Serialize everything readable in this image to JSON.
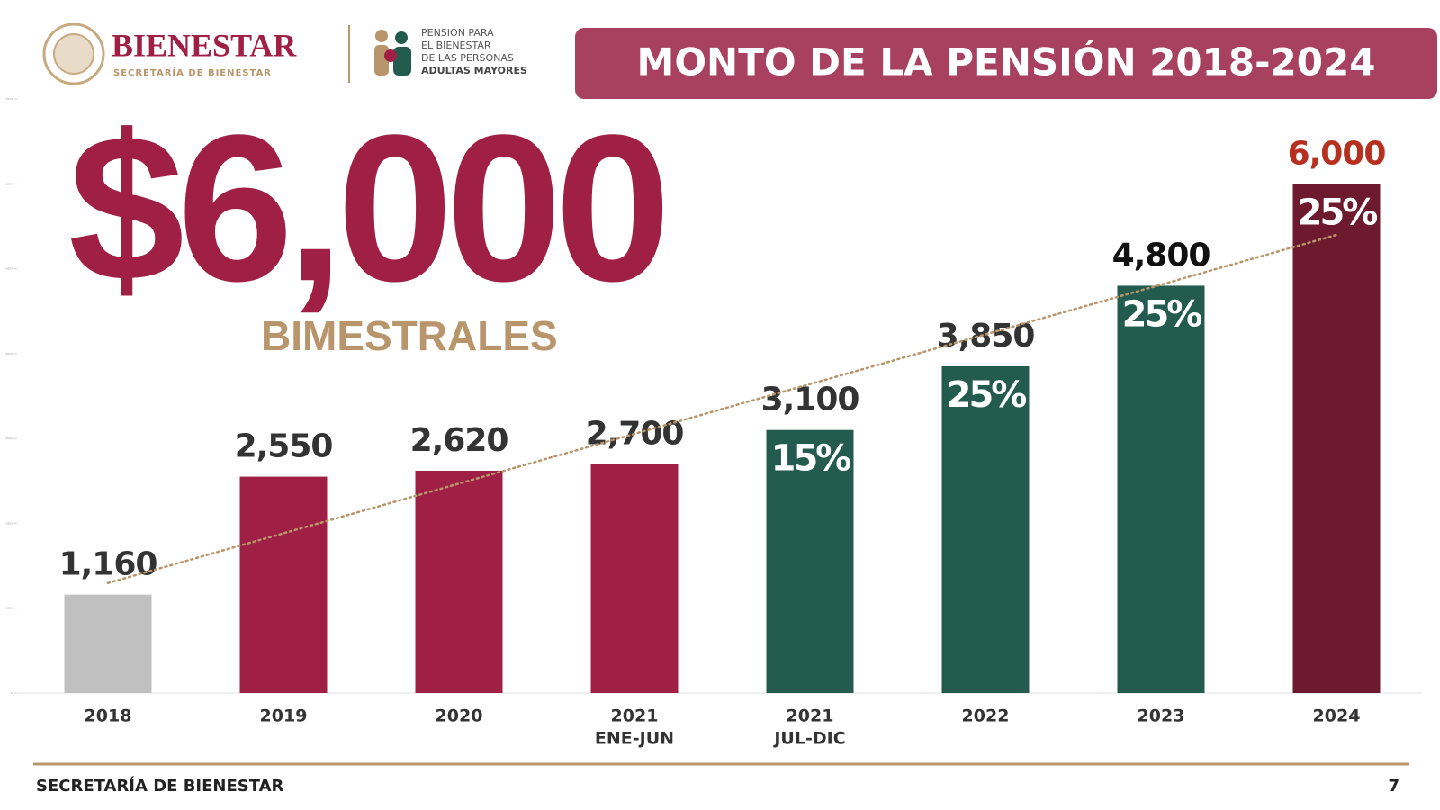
{
  "header": {
    "brand": "BIENESTAR",
    "brand_sub": "SECRETARÍA DE BIENESTAR",
    "program": [
      "PENSIÓN PARA",
      "EL BIENESTAR",
      "DE LAS PERSONAS",
      "ADULTAS MAYORES"
    ]
  },
  "chart_data": {
    "type": "bar",
    "title": "MONTO DE LA PENSIÓN 2018-2024",
    "headline": "$6,000",
    "subheadline": "BIMESTRALES",
    "categories": [
      "2018",
      "2019",
      "2020",
      "2021",
      "2021",
      "2022",
      "2023",
      "2024"
    ],
    "category_sublabels": [
      null,
      null,
      null,
      "ENE-JUN",
      "JUL-DIC",
      null,
      null,
      null
    ],
    "values": [
      1160,
      2550,
      2620,
      2700,
      3100,
      3850,
      4800,
      6000
    ],
    "value_labels": [
      "1,160",
      "2,550",
      "2,620",
      "2,700",
      "3,100",
      "3,850",
      "4,800",
      "6,000"
    ],
    "increases": [
      null,
      null,
      null,
      null,
      15,
      25,
      25,
      25
    ],
    "increase_labels": [
      null,
      null,
      null,
      null,
      "15%",
      "25%",
      "25%",
      "25%"
    ],
    "colors": [
      "#c0c0c0",
      "#a01f45",
      "#a01f45",
      "#a01f45",
      "#235b4e",
      "#235b4e",
      "#235b4e",
      "#6d1a2e"
    ],
    "label_colors": [
      "#333333",
      "#333333",
      "#333333",
      "#333333",
      "#333333",
      "#333333",
      "#111111",
      "#b5301f"
    ],
    "ylim": [
      0,
      7000
    ],
    "yticks": [
      0,
      1000,
      2000,
      3000,
      4000,
      5000,
      6000,
      7000
    ],
    "trendline": true
  },
  "footer": {
    "left": "SECRETARÍA DE BIENESTAR",
    "page": "7"
  }
}
